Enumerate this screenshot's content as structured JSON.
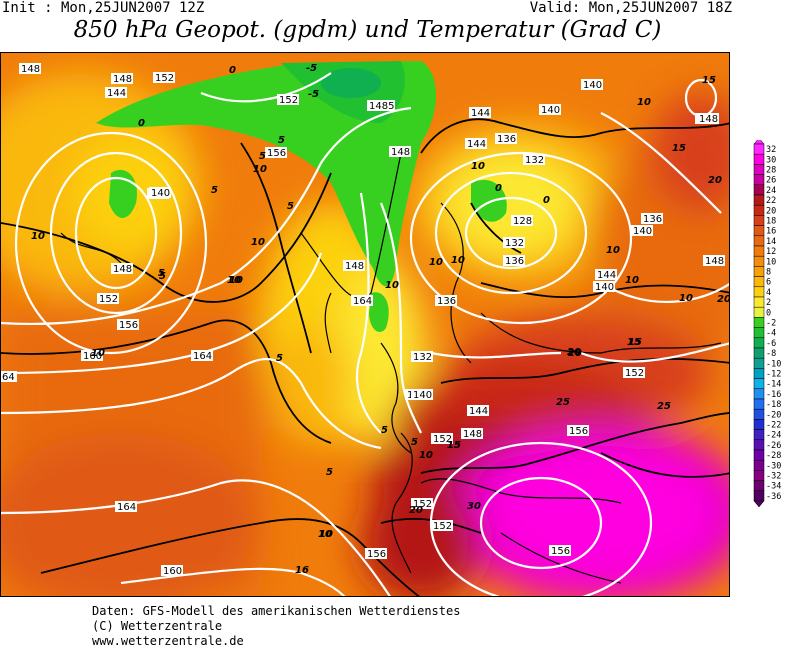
{
  "header": {
    "init": "Init : Mon,25JUN2007 12Z",
    "valid": "Valid: Mon,25JUN2007 18Z",
    "title": "850 hPa Geopot. (gpdm) und Temperatur (Grad C)"
  },
  "legend": {
    "values": [
      "32",
      "30",
      "28",
      "26",
      "24",
      "22",
      "20",
      "18",
      "16",
      "14",
      "12",
      "10",
      "8",
      "6",
      "4",
      "2",
      "0",
      "-2",
      "-4",
      "-6",
      "-8",
      "-10",
      "-12",
      "-14",
      "-16",
      "-18",
      "-20",
      "-22",
      "-24",
      "-26",
      "-28",
      "-30",
      "-32",
      "-34",
      "-36"
    ],
    "colors": [
      "#ff26ff",
      "#ff00e0",
      "#e000c0",
      "#c800a0",
      "#a80050",
      "#b41818",
      "#c82814",
      "#d8401a",
      "#e05a14",
      "#e86a10",
      "#f07c0c",
      "#f48e0a",
      "#f8a008",
      "#fab808",
      "#fcd010",
      "#fce830",
      "#e8f040",
      "#38d020",
      "#20c030",
      "#10b050",
      "#10a070",
      "#10a090",
      "#00a0c0",
      "#10b0e8",
      "#2090f0",
      "#2070f0",
      "#2050e0",
      "#2030d0",
      "#4020c0",
      "#5810b0",
      "#7000a8",
      "#7c0090",
      "#880080",
      "#6e0070",
      "#500060"
    ]
  },
  "map": {
    "geopotential_labels": [
      "148",
      "148",
      "144",
      "152",
      "152",
      "156",
      "148",
      "144",
      "140",
      "132",
      "136",
      "128",
      "132",
      "136",
      "140",
      "148",
      "136",
      "132",
      "140",
      "148",
      "152",
      "144",
      "140",
      "136",
      "148",
      "148",
      "140",
      "152",
      "152",
      "156",
      "160",
      "164",
      "164",
      "164",
      "160",
      "156",
      "152",
      "152",
      "156",
      "156",
      "144",
      "140",
      "148",
      "1485",
      "144",
      "140",
      "140",
      "148",
      "64",
      "148",
      "140",
      "152"
    ],
    "temperature_labels": [
      "0",
      "-5",
      "-5",
      "0",
      "5",
      "5",
      "10",
      "5",
      "10",
      "10",
      "5",
      "15",
      "10",
      "0",
      "10",
      "15",
      "20",
      "20",
      "20",
      "10",
      "10",
      "10",
      "10",
      "5",
      "5",
      "10",
      "15",
      "20",
      "25",
      "25",
      "30",
      "15",
      "16",
      "10",
      "5",
      "10",
      "10",
      "0",
      "10",
      "10",
      "5",
      "10",
      "15",
      "15",
      "10",
      "20",
      "5",
      "5"
    ]
  },
  "footer": {
    "line1": "Daten: GFS-Modell des amerikanischen Wetterdienstes",
    "line2": "(C) Wetterzentrale",
    "line3": "www.wetterzentrale.de"
  }
}
